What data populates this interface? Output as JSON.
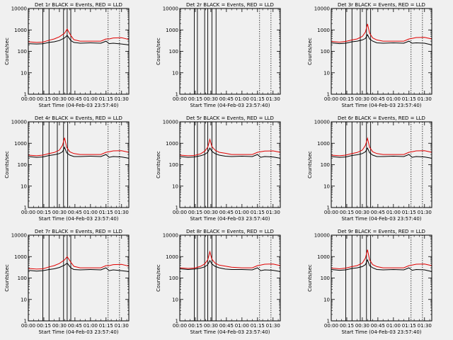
{
  "colors": {
    "events": "#000000",
    "lld": "#e00000",
    "background": "#f0f0f0",
    "axis": "#000000"
  },
  "chart_data": [
    {
      "type": "line",
      "title": "Det 1r BLACK = Events, RED = LLD",
      "xlabel": "Start Time (04-Feb-03 23:57:40)",
      "ylabel": "Counts/sec",
      "yscale": "log",
      "ylim": [
        1,
        10000
      ],
      "xtick_labels": [
        "00:00",
        "00:15",
        "00:30",
        "00:45",
        "01:00",
        "01:15",
        "01:30"
      ],
      "ytick_labels": [
        "1",
        "10",
        "100",
        "1000",
        "10000"
      ],
      "solid_markers_min": [
        14,
        20,
        34,
        37.5,
        41
      ],
      "dotted_markers_min": [
        77,
        88
      ],
      "series": [
        {
          "name": "Events",
          "x": [
            0,
            8,
            14,
            20,
            25,
            30,
            35,
            37.5,
            41,
            44,
            50,
            60,
            70,
            75,
            78,
            82,
            90,
            97
          ],
          "y": [
            230,
            220,
            225,
            260,
            280,
            320,
            420,
            560,
            320,
            260,
            240,
            250,
            240,
            300,
            230,
            240,
            220,
            200
          ]
        },
        {
          "name": "LLD",
          "x": [
            0,
            8,
            14,
            20,
            25,
            30,
            35,
            37.5,
            41,
            44,
            50,
            60,
            70,
            75,
            78,
            82,
            90,
            97
          ],
          "y": [
            280,
            260,
            270,
            330,
            380,
            480,
            700,
            1100,
            550,
            350,
            300,
            300,
            300,
            380,
            380,
            420,
            430,
            360
          ]
        }
      ]
    },
    {
      "type": "line",
      "title": "Det 2r BLACK = Events, RED = LLD",
      "xlabel": "Start Time (04-Feb-03 23:57:40)",
      "ylabel": "Counts/sec",
      "yscale": "log",
      "ylim": [
        1,
        10000
      ],
      "xtick_labels": [
        "00:00",
        "00:15",
        "00:30",
        "00:45",
        "01:00",
        "01:15",
        "01:30"
      ],
      "ytick_labels": [
        "1",
        "10",
        "100",
        "1000",
        "10000"
      ],
      "solid_markers_min": [
        14,
        17,
        24,
        27,
        31,
        35
      ],
      "dotted_markers_min": [
        77,
        88
      ],
      "series": []
    },
    {
      "type": "line",
      "title": "Det 3r BLACK = Events, RED = LLD",
      "xlabel": "Start Time (04-Feb-03 23:57:40)",
      "ylabel": "Counts/sec",
      "yscale": "log",
      "ylim": [
        1,
        10000
      ],
      "xtick_labels": [
        "00:00",
        "00:15",
        "00:30",
        "00:45",
        "01:00",
        "01:15",
        "01:30"
      ],
      "ytick_labels": [
        "1",
        "10",
        "100",
        "1000",
        "10000"
      ],
      "solid_markers_min": [
        14,
        20,
        28,
        34,
        38
      ],
      "dotted_markers_min": [
        77,
        88
      ],
      "series": [
        {
          "name": "Events",
          "x": [
            0,
            8,
            14,
            20,
            25,
            30,
            33,
            35,
            37,
            40,
            44,
            50,
            60,
            70,
            75,
            78,
            82,
            90,
            97
          ],
          "y": [
            250,
            230,
            240,
            280,
            300,
            340,
            400,
            600,
            380,
            300,
            250,
            240,
            250,
            240,
            300,
            240,
            250,
            240,
            200
          ]
        },
        {
          "name": "LLD",
          "x": [
            0,
            8,
            14,
            20,
            25,
            30,
            33,
            35,
            37,
            40,
            44,
            50,
            60,
            70,
            75,
            78,
            82,
            90,
            97
          ],
          "y": [
            290,
            270,
            290,
            340,
            380,
            500,
            800,
            1900,
            700,
            420,
            340,
            300,
            300,
            300,
            380,
            400,
            440,
            450,
            380
          ]
        }
      ]
    },
    {
      "type": "line",
      "title": "Det 4r BLACK = Events, RED = LLD",
      "xlabel": "Start Time (04-Feb-03 23:57:40)",
      "ylabel": "Counts/sec",
      "yscale": "log",
      "ylim": [
        1,
        10000
      ],
      "xtick_labels": [
        "00:00",
        "00:15",
        "00:30",
        "00:45",
        "01:00",
        "01:15",
        "01:30"
      ],
      "ytick_labels": [
        "1",
        "10",
        "100",
        "1000",
        "10000"
      ],
      "solid_markers_min": [
        14,
        20,
        28,
        34,
        38
      ],
      "dotted_markers_min": [
        77,
        88
      ],
      "series": [
        {
          "name": "Events",
          "x": [
            0,
            8,
            14,
            20,
            25,
            30,
            33,
            35,
            37,
            40,
            44,
            50,
            60,
            70,
            75,
            78,
            82,
            90,
            97
          ],
          "y": [
            240,
            220,
            230,
            270,
            290,
            330,
            400,
            650,
            360,
            280,
            240,
            240,
            250,
            240,
            300,
            220,
            240,
            230,
            200
          ]
        },
        {
          "name": "LLD",
          "x": [
            0,
            8,
            14,
            20,
            25,
            30,
            33,
            35,
            37,
            40,
            44,
            50,
            60,
            70,
            75,
            78,
            82,
            90,
            97
          ],
          "y": [
            280,
            260,
            280,
            330,
            370,
            480,
            800,
            1800,
            650,
            400,
            330,
            300,
            300,
            300,
            380,
            400,
            440,
            450,
            380
          ]
        }
      ]
    },
    {
      "type": "line",
      "title": "Det 5r BLACK = Events, RED = LLD",
      "xlabel": "Start Time (04-Feb-03 23:57:40)",
      "ylabel": "Counts/sec",
      "yscale": "log",
      "ylim": [
        1,
        10000
      ],
      "xtick_labels": [
        "00:00",
        "00:15",
        "00:30",
        "00:45",
        "01:00",
        "01:15",
        "01:30"
      ],
      "ytick_labels": [
        "1",
        "10",
        "100",
        "1000",
        "10000"
      ],
      "solid_markers_min": [
        14,
        17,
        24,
        27,
        31,
        35
      ],
      "dotted_markers_min": [
        77,
        88
      ],
      "series": [
        {
          "name": "Events",
          "x": [
            0,
            8,
            14,
            20,
            24,
            27,
            29,
            31,
            34,
            38,
            44,
            50,
            60,
            70,
            75,
            78,
            82,
            90,
            97
          ],
          "y": [
            240,
            220,
            230,
            260,
            300,
            380,
            600,
            420,
            330,
            280,
            250,
            240,
            250,
            240,
            300,
            220,
            240,
            230,
            200
          ]
        },
        {
          "name": "LLD",
          "x": [
            0,
            8,
            14,
            20,
            24,
            27,
            29,
            31,
            34,
            38,
            44,
            50,
            60,
            70,
            75,
            78,
            82,
            90,
            97
          ],
          "y": [
            280,
            260,
            270,
            320,
            420,
            650,
            1500,
            700,
            480,
            380,
            340,
            300,
            300,
            300,
            380,
            400,
            430,
            440,
            380
          ]
        }
      ]
    },
    {
      "type": "line",
      "title": "Det 6r BLACK = Events, RED = LLD",
      "xlabel": "Start Time (04-Feb-03 23:57:40)",
      "ylabel": "Counts/sec",
      "yscale": "log",
      "ylim": [
        1,
        10000
      ],
      "xtick_labels": [
        "00:00",
        "00:15",
        "00:30",
        "00:45",
        "01:00",
        "01:15",
        "01:30"
      ],
      "ytick_labels": [
        "1",
        "10",
        "100",
        "1000",
        "10000"
      ],
      "solid_markers_min": [
        14,
        20,
        28,
        34,
        38
      ],
      "dotted_markers_min": [
        77,
        88
      ],
      "series": [
        {
          "name": "Events",
          "x": [
            0,
            8,
            14,
            20,
            25,
            30,
            33,
            35,
            37,
            40,
            44,
            50,
            60,
            70,
            75,
            78,
            82,
            90,
            97
          ],
          "y": [
            240,
            220,
            230,
            270,
            290,
            330,
            400,
            600,
            360,
            280,
            240,
            240,
            250,
            240,
            300,
            220,
            240,
            230,
            200
          ]
        },
        {
          "name": "LLD",
          "x": [
            0,
            8,
            14,
            20,
            25,
            30,
            33,
            35,
            37,
            40,
            44,
            50,
            60,
            70,
            75,
            78,
            82,
            90,
            97
          ],
          "y": [
            280,
            260,
            280,
            330,
            370,
            480,
            800,
            1700,
            650,
            400,
            330,
            300,
            300,
            300,
            380,
            400,
            440,
            450,
            380
          ]
        }
      ]
    },
    {
      "type": "line",
      "title": "Det 7r BLACK = Events, RED = LLD",
      "xlabel": "Start Time (04-Feb-03 23:57:40)",
      "ylabel": "Counts/sec",
      "yscale": "log",
      "ylim": [
        1,
        10000
      ],
      "xtick_labels": [
        "00:00",
        "00:15",
        "00:30",
        "00:45",
        "01:00",
        "01:15",
        "01:30"
      ],
      "ytick_labels": [
        "1",
        "10",
        "100",
        "1000",
        "10000"
      ],
      "solid_markers_min": [
        14,
        20,
        34,
        37.5,
        41
      ],
      "dotted_markers_min": [
        77,
        88
      ],
      "series": [
        {
          "name": "Events",
          "x": [
            0,
            8,
            14,
            20,
            25,
            30,
            35,
            37.5,
            41,
            44,
            50,
            60,
            70,
            75,
            78,
            82,
            90,
            97
          ],
          "y": [
            230,
            210,
            220,
            250,
            270,
            310,
            400,
            500,
            300,
            250,
            240,
            250,
            240,
            300,
            220,
            240,
            220,
            200
          ]
        },
        {
          "name": "LLD",
          "x": [
            0,
            8,
            14,
            20,
            25,
            30,
            35,
            37.5,
            41,
            44,
            50,
            60,
            70,
            75,
            78,
            82,
            90,
            97
          ],
          "y": [
            280,
            260,
            270,
            330,
            380,
            480,
            700,
            1000,
            550,
            350,
            300,
            300,
            300,
            380,
            380,
            420,
            430,
            360
          ]
        }
      ]
    },
    {
      "type": "line",
      "title": "Det 8r BLACK = Events, RED = LLD",
      "xlabel": "Start Time (04-Feb-03 23:57:40)",
      "ylabel": "Counts/sec",
      "yscale": "log",
      "ylim": [
        1,
        10000
      ],
      "xtick_labels": [
        "00:00",
        "00:15",
        "00:30",
        "00:45",
        "01:00",
        "01:15",
        "01:30"
      ],
      "ytick_labels": [
        "1",
        "10",
        "100",
        "1000",
        "10000"
      ],
      "solid_markers_min": [
        14,
        17,
        24,
        27,
        31,
        35
      ],
      "dotted_markers_min": [
        77,
        88
      ],
      "series": [
        {
          "name": "Events",
          "x": [
            0,
            8,
            14,
            20,
            24,
            27,
            29,
            31,
            34,
            38,
            44,
            50,
            60,
            70,
            75,
            78,
            82,
            90,
            97
          ],
          "y": [
            270,
            250,
            260,
            290,
            330,
            420,
            650,
            450,
            350,
            300,
            260,
            250,
            250,
            240,
            300,
            220,
            240,
            230,
            200
          ]
        },
        {
          "name": "LLD",
          "x": [
            0,
            8,
            14,
            20,
            24,
            27,
            29,
            31,
            34,
            38,
            44,
            50,
            60,
            70,
            75,
            78,
            82,
            90,
            97
          ],
          "y": [
            300,
            280,
            290,
            350,
            450,
            700,
            1700,
            750,
            500,
            400,
            360,
            320,
            300,
            300,
            380,
            400,
            440,
            450,
            380
          ]
        }
      ]
    },
    {
      "type": "line",
      "title": "Det 9r BLACK = Events, RED = LLD",
      "xlabel": "Start Time (04-Feb-03 23:57:40)",
      "ylabel": "Counts/sec",
      "yscale": "log",
      "ylim": [
        1,
        10000
      ],
      "xtick_labels": [
        "00:00",
        "00:15",
        "00:30",
        "00:45",
        "01:00",
        "01:15",
        "01:30"
      ],
      "ytick_labels": [
        "1",
        "10",
        "100",
        "1000",
        "10000"
      ],
      "solid_markers_min": [
        14,
        20,
        28,
        34,
        38
      ],
      "dotted_markers_min": [
        77,
        88
      ],
      "series": [
        {
          "name": "Events",
          "x": [
            0,
            8,
            14,
            20,
            25,
            30,
            33,
            35,
            37,
            40,
            44,
            50,
            60,
            70,
            75,
            78,
            82,
            90,
            97
          ],
          "y": [
            250,
            230,
            240,
            280,
            300,
            340,
            420,
            700,
            380,
            300,
            250,
            240,
            250,
            240,
            300,
            230,
            250,
            240,
            200
          ]
        },
        {
          "name": "LLD",
          "x": [
            0,
            8,
            14,
            20,
            25,
            30,
            33,
            35,
            37,
            40,
            44,
            50,
            60,
            70,
            75,
            78,
            82,
            90,
            97
          ],
          "y": [
            290,
            270,
            290,
            340,
            380,
            500,
            850,
            2100,
            700,
            420,
            340,
            300,
            300,
            300,
            380,
            400,
            440,
            450,
            380
          ]
        }
      ]
    }
  ]
}
